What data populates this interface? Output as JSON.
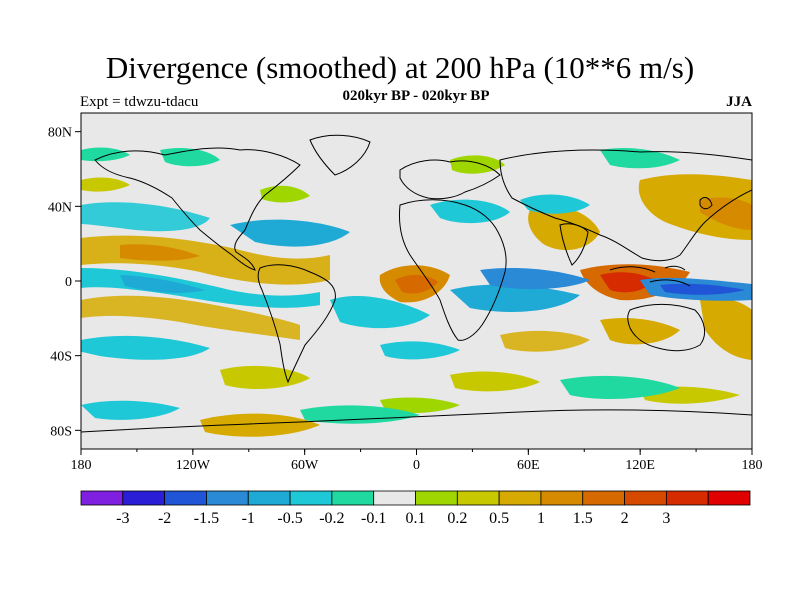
{
  "title": "Divergence (smoothed) at 200 hPa (10**6 m/s)",
  "subtitle": "020kyr BP - 020kyr BP",
  "left_label": "Expt = tdwzu-tdacu",
  "right_label": "JJA",
  "x_ticks": [
    "180",
    "120W",
    "60W",
    "0",
    "60E",
    "120E",
    "180"
  ],
  "y_ticks": [
    "80N",
    "40N",
    "0",
    "40S",
    "80S"
  ],
  "colorbar": {
    "colors": [
      "#7f1fe0",
      "#2a1fd6",
      "#1f55d6",
      "#2a8ad6",
      "#1faad6",
      "#1fc8d6",
      "#1fd9a0",
      "#e8e8e8",
      "#a0d600",
      "#c8c800",
      "#d6aa00",
      "#d68a00",
      "#d66a00",
      "#d64a00",
      "#d62a00",
      "#e00000"
    ],
    "labels": [
      "-3",
      "-2",
      "-1.5",
      "-1",
      "-0.5",
      "-0.2",
      "-0.1",
      "0.1",
      "0.2",
      "0.5",
      "1",
      "1.5",
      "2",
      "3"
    ]
  }
}
